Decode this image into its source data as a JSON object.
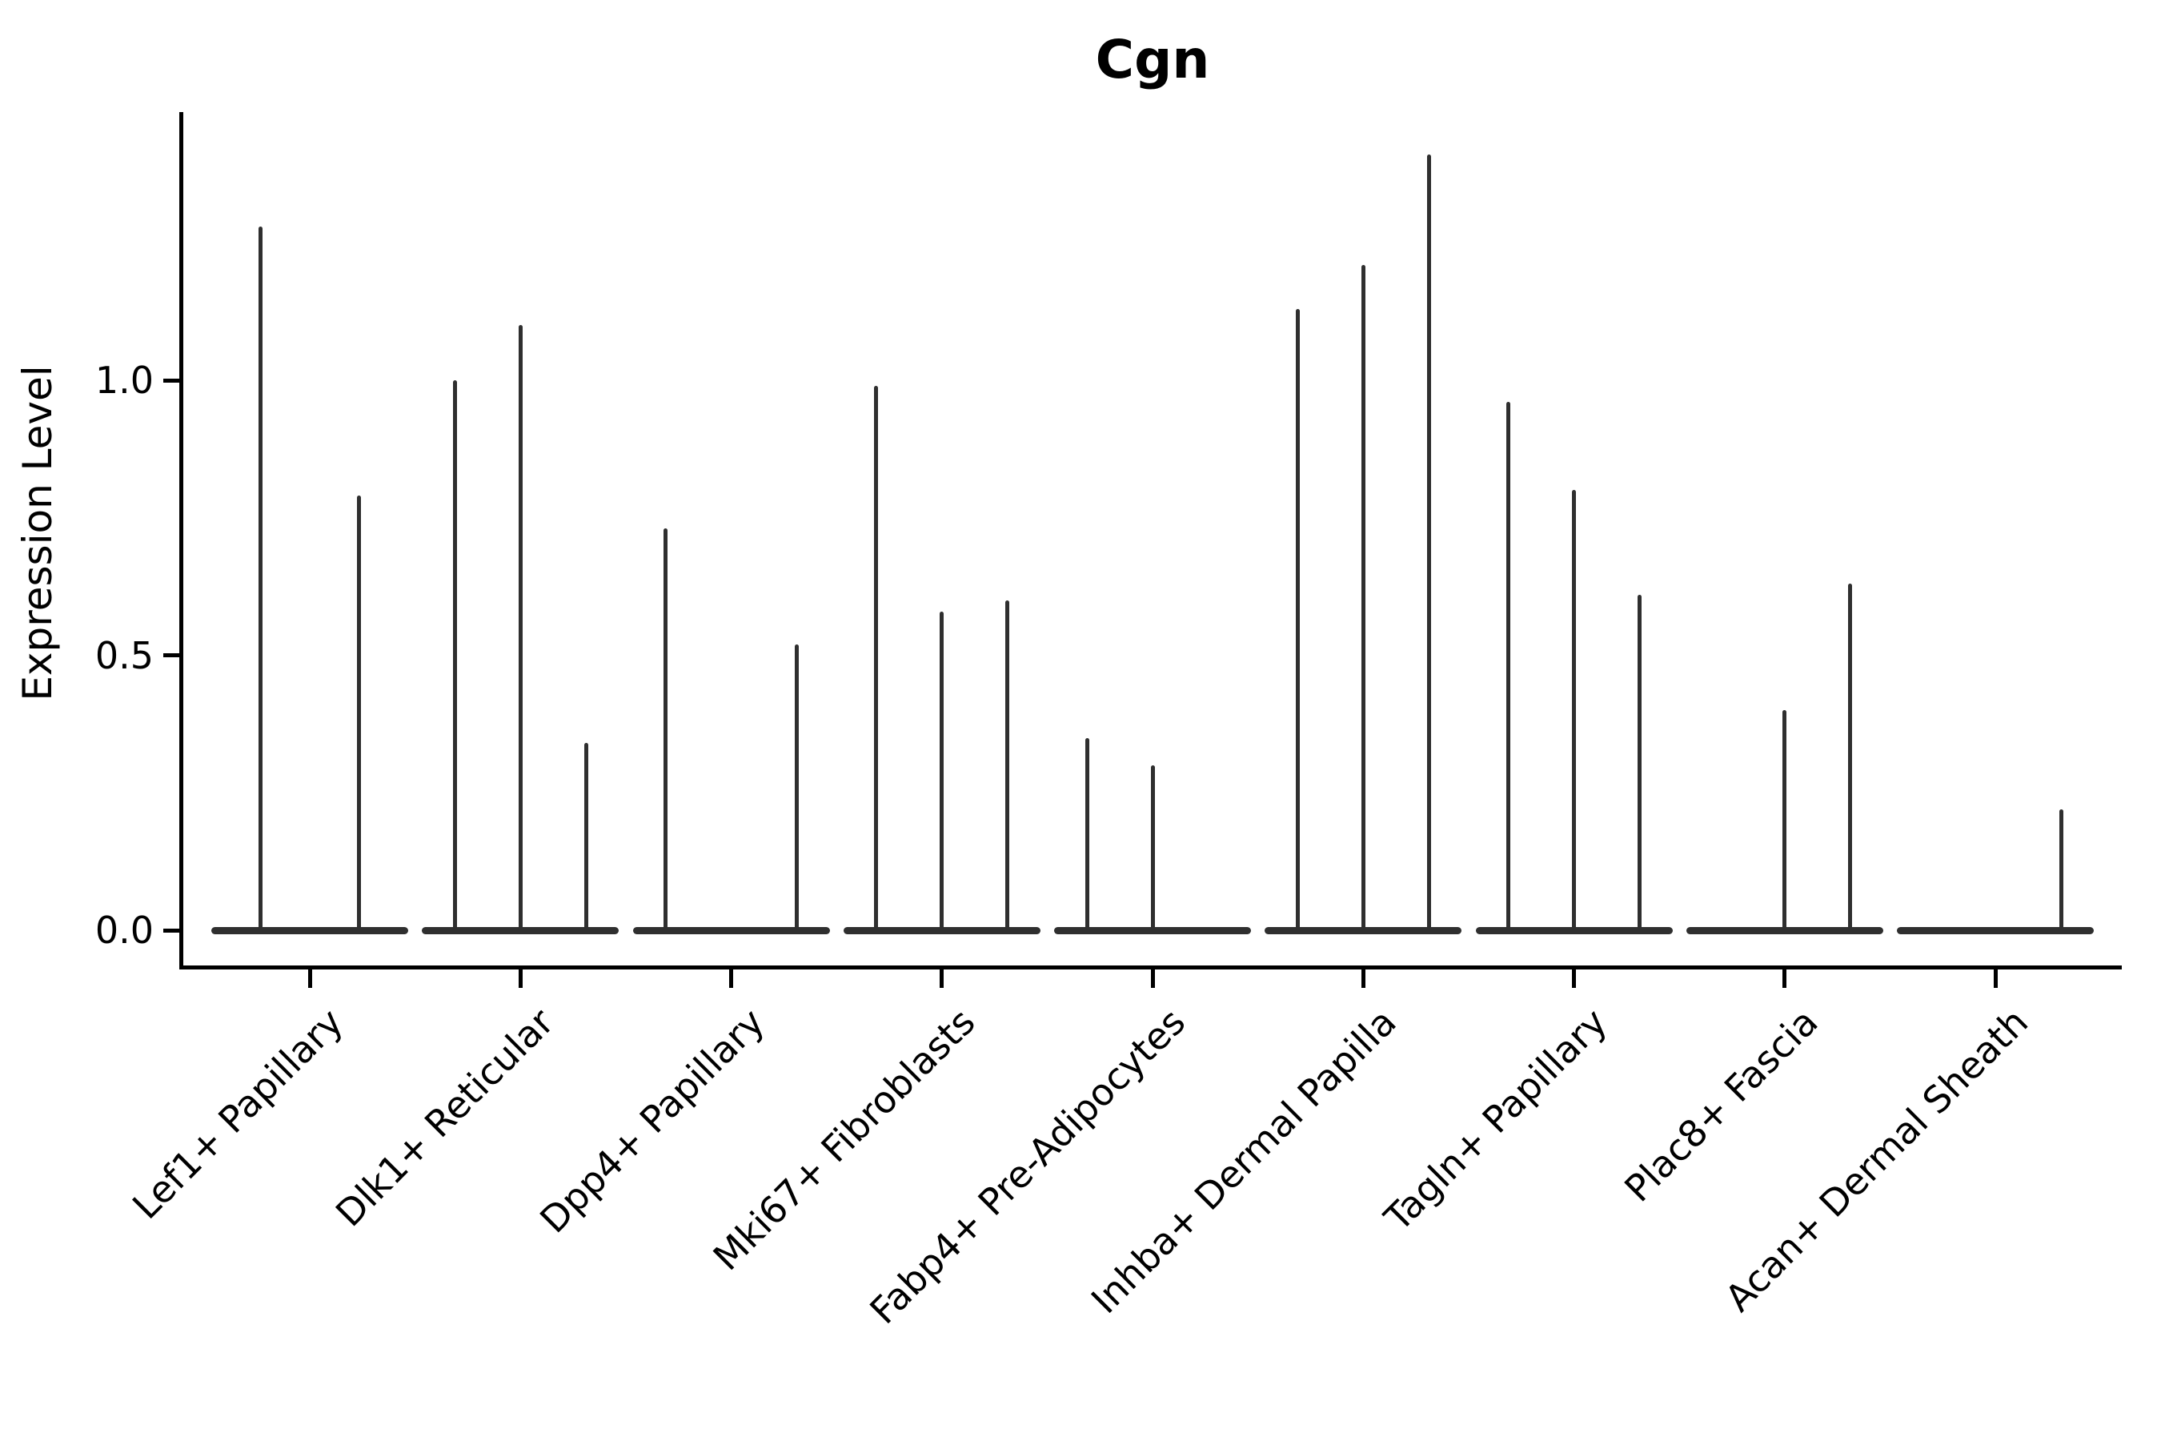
{
  "title": "Cgn",
  "y_axis": {
    "label": "Expression Level"
  },
  "colors": {
    "violin": "#2f2f2f",
    "axis": "#000000",
    "text": "#000000"
  },
  "chart_data": {
    "type": "violin",
    "title": "Cgn",
    "xlabel": "",
    "ylabel": "Expression Level",
    "ylim": [
      -0.06,
      1.49
    ],
    "yticks": [
      0.0,
      0.5,
      1.0
    ],
    "ytick_labels": [
      "0.0",
      "0.5",
      "1.0"
    ],
    "grid": false,
    "legend_position": "none",
    "categories": [
      "Lef1+ Papillary",
      "Dlk1+ Reticular",
      "Dpp4+ Papillary",
      "Mki67+ Fibroblasts",
      "Fabp4+ Pre-Adipocytes",
      "Inhba+ Dermal Papilla",
      "Tagln+ Papillary",
      "Plac8+ Fascia",
      "Acan+ Dermal Sheath"
    ],
    "groups": [
      {
        "category": "Lef1+ Papillary",
        "violin_max": [
          1.28,
          0.79
        ]
      },
      {
        "category": "Dlk1+ Reticular",
        "violin_max": [
          1.0,
          1.1,
          0.34
        ]
      },
      {
        "category": "Dpp4+ Papillary",
        "violin_max": [
          0.73,
          0.0,
          0.52
        ]
      },
      {
        "category": "Mki67+ Fibroblasts",
        "violin_max": [
          0.99,
          0.58,
          0.6
        ]
      },
      {
        "category": "Fabp4+ Pre-Adipocytes",
        "violin_max": [
          0.35,
          0.3,
          0.0
        ]
      },
      {
        "category": "Inhba+ Dermal Papilla",
        "violin_max": [
          1.13,
          1.21,
          1.41
        ]
      },
      {
        "category": "Tagln+ Papillary",
        "violin_max": [
          0.96,
          0.8,
          0.61
        ]
      },
      {
        "category": "Plac8+ Fascia",
        "violin_max": [
          0.0,
          0.4,
          0.63
        ]
      },
      {
        "category": "Acan+ Dermal Sheath",
        "violin_max": [
          0.0,
          0.0,
          0.22
        ]
      }
    ]
  }
}
